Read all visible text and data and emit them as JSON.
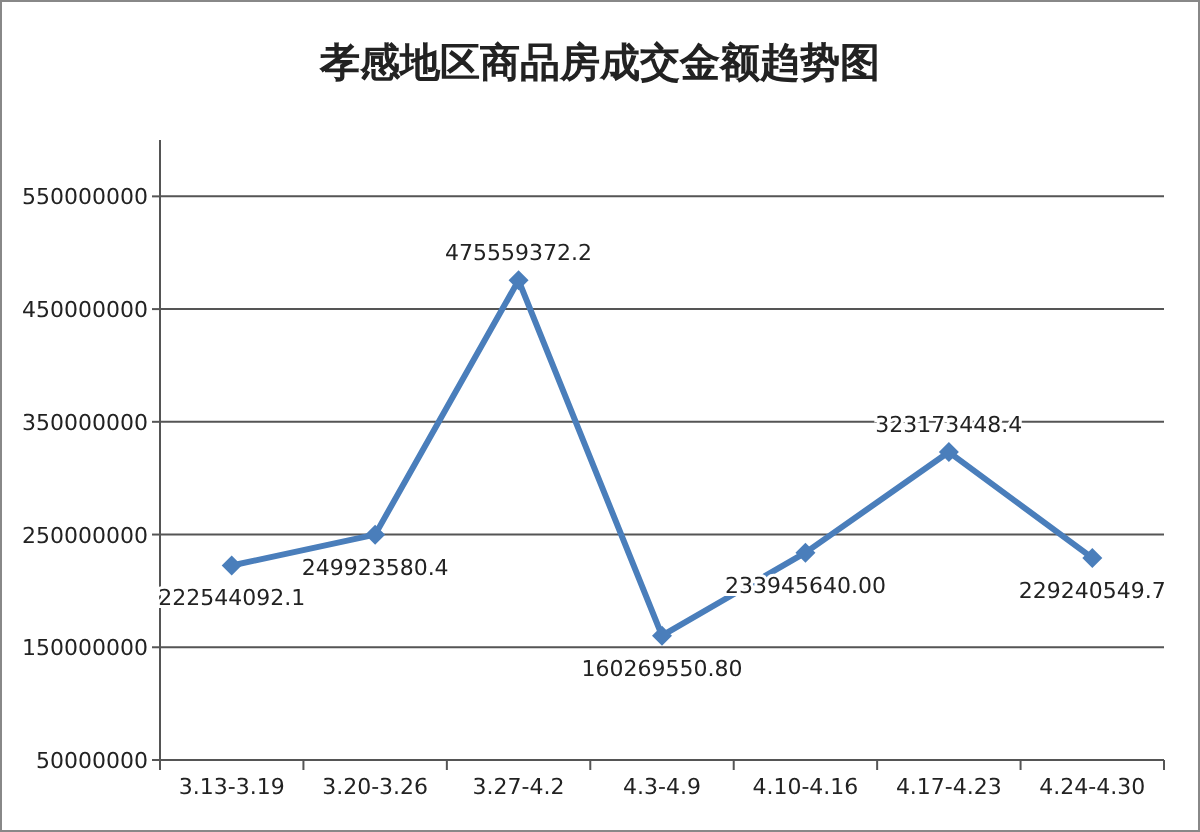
{
  "chart_data": {
    "type": "line",
    "title": "孝感地区商品房成交金额趋势图",
    "categories": [
      "3.13-3.19",
      "3.20-3.26",
      "3.27-4.2",
      "4.3-4.9",
      "4.10-4.16",
      "4.17-4.23",
      "4.24-4.30"
    ],
    "series": [
      {
        "color": "#4a7ebb",
        "values": [
          222544092.1,
          249923580.4,
          475559372.2,
          160269550.8,
          233945640,
          323173448.4,
          229240549.7
        ],
        "value_labels": [
          "222544092.1",
          "249923580.4",
          "475559372.2",
          "160269550.80",
          "233945640.00",
          "323173448.4",
          "229240549.7"
        ]
      }
    ],
    "ylim": [
      50000000,
      600000000
    ],
    "yticks": [
      50000000,
      150000000,
      250000000,
      350000000,
      450000000,
      550000000
    ],
    "grid": "y",
    "marker": "diamond",
    "line_style": "solid"
  }
}
